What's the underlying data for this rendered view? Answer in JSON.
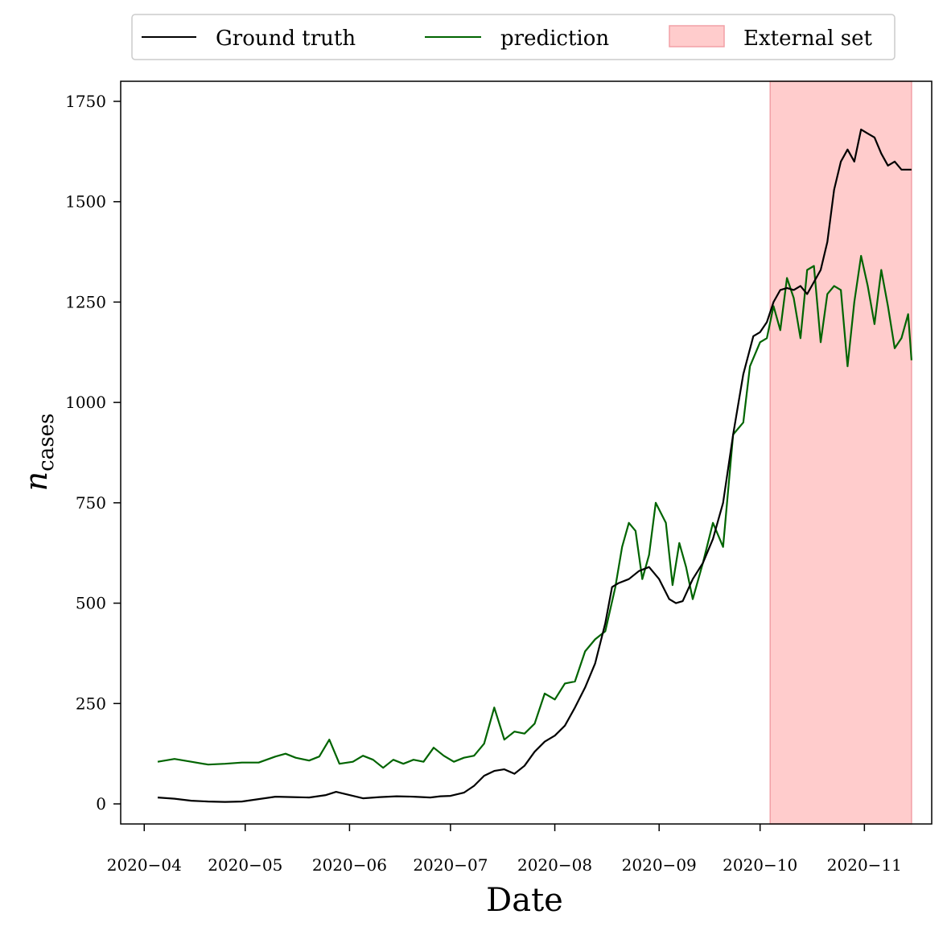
{
  "chart_data": {
    "type": "line",
    "xlabel": "Date",
    "ylabel_main": "n",
    "ylabel_sub": "cases",
    "ylim": [
      -50,
      1800
    ],
    "xlim": [
      "2020-03-25",
      "2020-11-21"
    ],
    "yticks": [
      0,
      250,
      500,
      750,
      1000,
      1250,
      1500,
      1750
    ],
    "xticks": [
      {
        "date": "2020-04-01",
        "label": "2020−04"
      },
      {
        "date": "2020-05-01",
        "label": "2020−05"
      },
      {
        "date": "2020-06-01",
        "label": "2020−06"
      },
      {
        "date": "2020-07-01",
        "label": "2020−07"
      },
      {
        "date": "2020-08-01",
        "label": "2020−08"
      },
      {
        "date": "2020-09-01",
        "label": "2020−09"
      },
      {
        "date": "2020-10-01",
        "label": "2020−10"
      },
      {
        "date": "2020-11-01",
        "label": "2020−11"
      }
    ],
    "grid": false,
    "legend": {
      "placement": "top-center, above plot",
      "entries": [
        "Ground truth",
        "prediction",
        "External set"
      ]
    },
    "span": {
      "name": "External set",
      "start": "2020-10-04",
      "end": "2020-11-15",
      "color": "#ffcccc",
      "edge": "#f2a0a6"
    },
    "series": [
      {
        "name": "Ground truth",
        "color": "#000000",
        "points": [
          [
            "2020-04-05",
            16
          ],
          [
            "2020-04-10",
            13
          ],
          [
            "2020-04-15",
            8
          ],
          [
            "2020-04-20",
            6
          ],
          [
            "2020-04-25",
            5
          ],
          [
            "2020-04-30",
            6
          ],
          [
            "2020-05-05",
            12
          ],
          [
            "2020-05-10",
            18
          ],
          [
            "2020-05-15",
            17
          ],
          [
            "2020-05-20",
            16
          ],
          [
            "2020-05-25",
            22
          ],
          [
            "2020-05-28",
            30
          ],
          [
            "2020-06-02",
            20
          ],
          [
            "2020-06-05",
            14
          ],
          [
            "2020-06-10",
            17
          ],
          [
            "2020-06-15",
            19
          ],
          [
            "2020-06-20",
            18
          ],
          [
            "2020-06-25",
            16
          ],
          [
            "2020-06-28",
            19
          ],
          [
            "2020-07-01",
            20
          ],
          [
            "2020-07-05",
            28
          ],
          [
            "2020-07-08",
            45
          ],
          [
            "2020-07-11",
            70
          ],
          [
            "2020-07-14",
            82
          ],
          [
            "2020-07-17",
            86
          ],
          [
            "2020-07-20",
            75
          ],
          [
            "2020-07-23",
            95
          ],
          [
            "2020-07-26",
            130
          ],
          [
            "2020-07-29",
            155
          ],
          [
            "2020-08-01",
            170
          ],
          [
            "2020-08-04",
            195
          ],
          [
            "2020-08-07",
            240
          ],
          [
            "2020-08-10",
            290
          ],
          [
            "2020-08-13",
            350
          ],
          [
            "2020-08-16",
            450
          ],
          [
            "2020-08-18",
            540
          ],
          [
            "2020-08-20",
            550
          ],
          [
            "2020-08-23",
            560
          ],
          [
            "2020-08-26",
            580
          ],
          [
            "2020-08-29",
            590
          ],
          [
            "2020-09-01",
            560
          ],
          [
            "2020-09-04",
            510
          ],
          [
            "2020-09-06",
            500
          ],
          [
            "2020-09-08",
            505
          ],
          [
            "2020-09-11",
            560
          ],
          [
            "2020-09-14",
            600
          ],
          [
            "2020-09-17",
            660
          ],
          [
            "2020-09-20",
            750
          ],
          [
            "2020-09-23",
            920
          ],
          [
            "2020-09-26",
            1070
          ],
          [
            "2020-09-29",
            1165
          ],
          [
            "2020-10-01",
            1175
          ],
          [
            "2020-10-03",
            1200
          ],
          [
            "2020-10-05",
            1250
          ],
          [
            "2020-10-07",
            1280
          ],
          [
            "2020-10-09",
            1285
          ],
          [
            "2020-10-11",
            1280
          ],
          [
            "2020-10-13",
            1290
          ],
          [
            "2020-10-15",
            1270
          ],
          [
            "2020-10-17",
            1300
          ],
          [
            "2020-10-19",
            1330
          ],
          [
            "2020-10-21",
            1400
          ],
          [
            "2020-10-23",
            1530
          ],
          [
            "2020-10-25",
            1600
          ],
          [
            "2020-10-27",
            1630
          ],
          [
            "2020-10-29",
            1600
          ],
          [
            "2020-10-31",
            1680
          ],
          [
            "2020-11-02",
            1670
          ],
          [
            "2020-11-04",
            1660
          ],
          [
            "2020-11-06",
            1620
          ],
          [
            "2020-11-08",
            1590
          ],
          [
            "2020-11-10",
            1600
          ],
          [
            "2020-11-12",
            1580
          ],
          [
            "2020-11-15",
            1580
          ]
        ]
      },
      {
        "name": "prediction",
        "color": "#006400",
        "points": [
          [
            "2020-04-05",
            105
          ],
          [
            "2020-04-10",
            112
          ],
          [
            "2020-04-15",
            105
          ],
          [
            "2020-04-20",
            98
          ],
          [
            "2020-04-25",
            100
          ],
          [
            "2020-04-30",
            103
          ],
          [
            "2020-05-05",
            103
          ],
          [
            "2020-05-10",
            118
          ],
          [
            "2020-05-13",
            125
          ],
          [
            "2020-05-16",
            115
          ],
          [
            "2020-05-20",
            108
          ],
          [
            "2020-05-23",
            118
          ],
          [
            "2020-05-26",
            160
          ],
          [
            "2020-05-29",
            100
          ],
          [
            "2020-06-02",
            105
          ],
          [
            "2020-06-05",
            120
          ],
          [
            "2020-06-08",
            110
          ],
          [
            "2020-06-11",
            90
          ],
          [
            "2020-06-14",
            110
          ],
          [
            "2020-06-17",
            100
          ],
          [
            "2020-06-20",
            110
          ],
          [
            "2020-06-23",
            105
          ],
          [
            "2020-06-26",
            140
          ],
          [
            "2020-06-29",
            120
          ],
          [
            "2020-07-02",
            105
          ],
          [
            "2020-07-05",
            115
          ],
          [
            "2020-07-08",
            120
          ],
          [
            "2020-07-11",
            150
          ],
          [
            "2020-07-14",
            240
          ],
          [
            "2020-07-17",
            160
          ],
          [
            "2020-07-20",
            180
          ],
          [
            "2020-07-23",
            175
          ],
          [
            "2020-07-26",
            200
          ],
          [
            "2020-07-29",
            275
          ],
          [
            "2020-08-01",
            260
          ],
          [
            "2020-08-04",
            300
          ],
          [
            "2020-08-07",
            305
          ],
          [
            "2020-08-10",
            380
          ],
          [
            "2020-08-13",
            410
          ],
          [
            "2020-08-16",
            430
          ],
          [
            "2020-08-19",
            540
          ],
          [
            "2020-08-21",
            640
          ],
          [
            "2020-08-23",
            700
          ],
          [
            "2020-08-25",
            680
          ],
          [
            "2020-08-27",
            560
          ],
          [
            "2020-08-29",
            620
          ],
          [
            "2020-08-31",
            750
          ],
          [
            "2020-09-03",
            700
          ],
          [
            "2020-09-05",
            545
          ],
          [
            "2020-09-07",
            650
          ],
          [
            "2020-09-09",
            590
          ],
          [
            "2020-09-11",
            510
          ],
          [
            "2020-09-14",
            600
          ],
          [
            "2020-09-17",
            700
          ],
          [
            "2020-09-20",
            640
          ],
          [
            "2020-09-23",
            920
          ],
          [
            "2020-09-26",
            950
          ],
          [
            "2020-09-28",
            1090
          ],
          [
            "2020-10-01",
            1150
          ],
          [
            "2020-10-03",
            1160
          ],
          [
            "2020-10-05",
            1240
          ],
          [
            "2020-10-07",
            1180
          ],
          [
            "2020-10-09",
            1310
          ],
          [
            "2020-10-11",
            1260
          ],
          [
            "2020-10-13",
            1160
          ],
          [
            "2020-10-15",
            1330
          ],
          [
            "2020-10-17",
            1340
          ],
          [
            "2020-10-19",
            1150
          ],
          [
            "2020-10-21",
            1270
          ],
          [
            "2020-10-23",
            1290
          ],
          [
            "2020-10-25",
            1280
          ],
          [
            "2020-10-27",
            1090
          ],
          [
            "2020-10-29",
            1250
          ],
          [
            "2020-10-31",
            1365
          ],
          [
            "2020-11-02",
            1290
          ],
          [
            "2020-11-04",
            1195
          ],
          [
            "2020-11-06",
            1330
          ],
          [
            "2020-11-08",
            1240
          ],
          [
            "2020-11-10",
            1135
          ],
          [
            "2020-11-12",
            1160
          ],
          [
            "2020-11-14",
            1220
          ],
          [
            "2020-11-15",
            1105
          ]
        ]
      }
    ]
  }
}
